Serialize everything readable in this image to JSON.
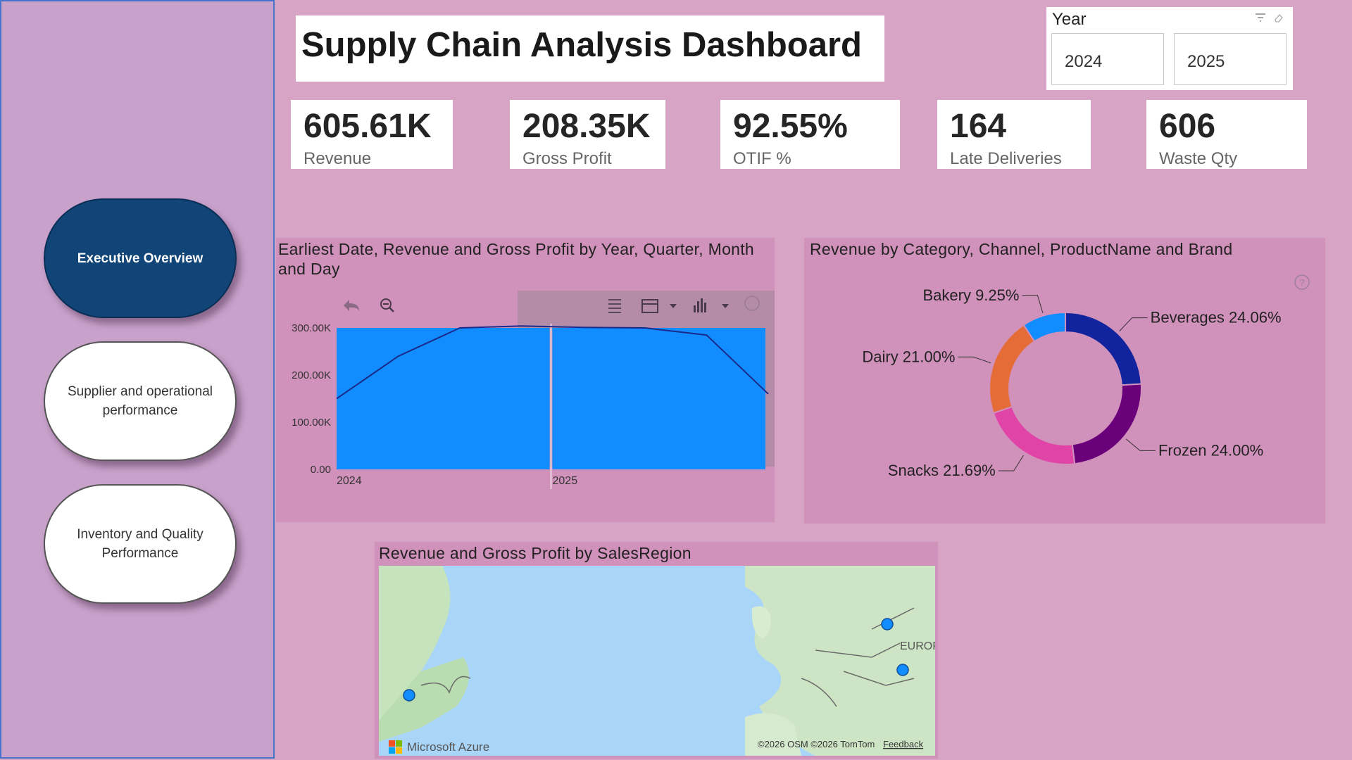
{
  "nav": {
    "items": [
      {
        "label": "Executive Overview"
      },
      {
        "label": "Supplier and operational performance"
      },
      {
        "label": "Inventory and Quality Performance"
      }
    ]
  },
  "header": {
    "title": "Supply Chain Analysis Dashboard"
  },
  "slicer": {
    "label": "Year",
    "options": [
      "2024",
      "2025"
    ],
    "icons": [
      "filter-icon",
      "eraser-icon"
    ]
  },
  "kpis": [
    {
      "value": "605.61K",
      "label": "Revenue"
    },
    {
      "value": "208.35K",
      "label": "Gross Profit"
    },
    {
      "value": "92.55%",
      "label": "OTIF %"
    },
    {
      "value": "164",
      "label": "Late Deliveries"
    },
    {
      "value": "606",
      "label": "Waste Qty"
    }
  ],
  "colors": {
    "accent": "#114477",
    "bar": "#118dff",
    "line": "#1a2a8a",
    "page": "#d8a4c6"
  },
  "combo": {
    "title": "Earliest Date, Revenue and Gross Profit by Year, Quarter, Month and Day"
  },
  "donut": {
    "title": "Revenue by Category, Channel, ProductName and Brand"
  },
  "map": {
    "title": "Revenue and Gross Profit by SalesRegion",
    "region_label": "EUROP",
    "brand": "Microsoft Azure",
    "attribution": "©2026 OSM  ©2026 TomTom",
    "feedback": "Feedback"
  },
  "chart_data": [
    {
      "type": "bar",
      "title": "Earliest Date, Revenue and Gross Profit by Year, Quarter, Month and Day",
      "categories": [
        "2024",
        "2025"
      ],
      "yticks": [
        "0.00",
        "100.00K",
        "200.00K",
        "300.00K"
      ],
      "ylim": [
        0,
        300000
      ],
      "series": [
        {
          "values": [
            300000,
            300000
          ]
        }
      ],
      "line": {
        "type": "line",
        "values": [
          150000,
          240000,
          300000,
          304000,
          301000,
          300000,
          285000,
          160000
        ]
      }
    },
    {
      "type": "pie",
      "title": "Revenue by Category, Channel, ProductName and Brand",
      "slices": [
        {
          "label": "Beverages",
          "value": 24.06,
          "display": "Beverages 24.06%",
          "color": "#12239e"
        },
        {
          "label": "Frozen",
          "value": 24.0,
          "display": "Frozen 24.00%",
          "color": "#6b007b"
        },
        {
          "label": "Snacks",
          "value": 21.69,
          "display": "Snacks 21.69%",
          "color": "#e044a7"
        },
        {
          "label": "Dairy",
          "value": 21.0,
          "display": "Dairy 21.00%",
          "color": "#e66c37"
        },
        {
          "label": "Bakery",
          "value": 9.25,
          "display": "Bakery 9.25%",
          "color": "#118dff"
        }
      ]
    }
  ]
}
